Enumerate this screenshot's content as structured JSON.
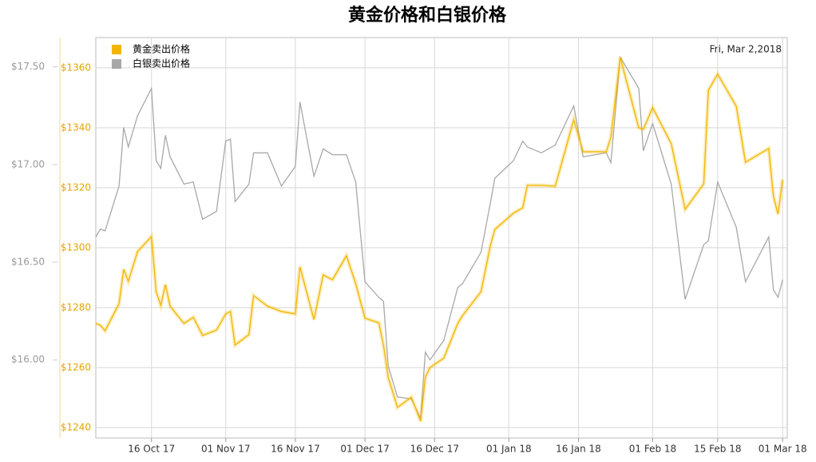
{
  "chart_data": {
    "type": "line",
    "title": "黄金价格和白银价格",
    "annotation": "Fri, Mar 2,2018",
    "grid": true,
    "legend": "top-left",
    "xlim": [
      "2017-10-04",
      "2018-03-02"
    ],
    "xticks": [
      {
        "value": "2017-10-16",
        "label": "16 Oct 17"
      },
      {
        "value": "2017-11-01",
        "label": "01 Nov 17"
      },
      {
        "value": "2017-11-16",
        "label": "16 Nov 17"
      },
      {
        "value": "2017-12-01",
        "label": "01 Dec 17"
      },
      {
        "value": "2017-12-16",
        "label": "16 Dec 17"
      },
      {
        "value": "2018-01-01",
        "label": "01 Jan 18"
      },
      {
        "value": "2018-01-16",
        "label": "16 Jan 18"
      },
      {
        "value": "2018-02-01",
        "label": "01 Feb 18"
      },
      {
        "value": "2018-02-15",
        "label": "15 Feb 18"
      },
      {
        "value": "2018-03-01",
        "label": "01 Mar 18"
      }
    ],
    "ylim": [
      1236.5,
      1370.1
    ],
    "yticks": [
      {
        "value": 1240,
        "label": "$1240"
      },
      {
        "value": 1260,
        "label": "$1260"
      },
      {
        "value": 1280,
        "label": "$1280"
      },
      {
        "value": 1300,
        "label": "$1300"
      },
      {
        "value": 1320,
        "label": "$1320"
      },
      {
        "value": 1340,
        "label": "$1340"
      },
      {
        "value": 1360,
        "label": "$1360"
      }
    ],
    "y2lim": [
      15.6,
      17.65
    ],
    "y2ticks": [
      {
        "value": 16.0,
        "label": "$16.00"
      },
      {
        "value": 16.5,
        "label": "$16.50"
      },
      {
        "value": 17.0,
        "label": "$17.00"
      },
      {
        "value": 17.5,
        "label": "$17.50"
      }
    ],
    "x": [
      "2017-10-04",
      "2017-10-05",
      "2017-10-06",
      "2017-10-09",
      "2017-10-10",
      "2017-10-11",
      "2017-10-13",
      "2017-10-16",
      "2017-10-17",
      "2017-10-18",
      "2017-10-19",
      "2017-10-20",
      "2017-10-23",
      "2017-10-25",
      "2017-10-27",
      "2017-10-30",
      "2017-11-01",
      "2017-11-02",
      "2017-11-03",
      "2017-11-06",
      "2017-11-07",
      "2017-11-10",
      "2017-11-13",
      "2017-11-16",
      "2017-11-17",
      "2017-11-20",
      "2017-11-22",
      "2017-11-24",
      "2017-11-27",
      "2017-11-29",
      "2017-12-01",
      "2017-12-04",
      "2017-12-05",
      "2017-12-06",
      "2017-12-08",
      "2017-12-11",
      "2017-12-13",
      "2017-12-14",
      "2017-12-15",
      "2017-12-18",
      "2017-12-21",
      "2017-12-22",
      "2017-12-26",
      "2017-12-28",
      "2017-12-29",
      "2018-01-02",
      "2018-01-04",
      "2018-01-05",
      "2018-01-08",
      "2018-01-11",
      "2018-01-15",
      "2018-01-17",
      "2018-01-22",
      "2018-01-23",
      "2018-01-25",
      "2018-01-29",
      "2018-01-30",
      "2018-02-01",
      "2018-02-05",
      "2018-02-08",
      "2018-02-12",
      "2018-02-13",
      "2018-02-15",
      "2018-02-19",
      "2018-02-21",
      "2018-02-26",
      "2018-02-27",
      "2018-02-28",
      "2018-03-01"
    ],
    "series": [
      {
        "name": "黄金卖出价格",
        "color": "#f2b600",
        "values": [
          1274.7,
          1274.1,
          1272.3,
          1281.3,
          1292.8,
          1288.8,
          1298.7,
          1303.7,
          1285.3,
          1280.8,
          1287.7,
          1280.5,
          1274.7,
          1276.8,
          1270.7,
          1272.5,
          1277.9,
          1278.7,
          1267.5,
          1271.0,
          1284.0,
          1280.5,
          1278.7,
          1277.9,
          1293.6,
          1276.0,
          1290.9,
          1289.3,
          1297.3,
          1288.0,
          1276.5,
          1274.9,
          1267.5,
          1256.8,
          1246.7,
          1250.1,
          1242.1,
          1256.8,
          1260.0,
          1263.2,
          1274.7,
          1277.3,
          1285.3,
          1300.5,
          1306.1,
          1311.5,
          1313.3,
          1320.8,
          1320.8,
          1320.5,
          1342.7,
          1332.0,
          1332.0,
          1336.8,
          1363.5,
          1340.0,
          1339.5,
          1346.7,
          1334.7,
          1312.8,
          1321.3,
          1352.5,
          1357.9,
          1347.2,
          1328.5,
          1333.1,
          1317.3,
          1311.2,
          1322.7
        ]
      },
      {
        "name": "白银卖出价格",
        "color": "#a8a8a8",
        "axis": "y2",
        "values": [
          16.63,
          16.67,
          16.66,
          16.89,
          17.19,
          17.09,
          17.25,
          17.39,
          17.02,
          16.98,
          17.15,
          17.04,
          16.9,
          16.91,
          16.72,
          16.76,
          17.12,
          17.13,
          16.81,
          16.9,
          17.06,
          17.06,
          16.89,
          16.99,
          17.32,
          16.94,
          17.08,
          17.05,
          17.05,
          16.91,
          16.4,
          16.32,
          16.3,
          15.97,
          15.81,
          15.8,
          15.7,
          16.04,
          16.0,
          16.1,
          16.37,
          16.39,
          16.55,
          16.8,
          16.93,
          17.02,
          17.12,
          17.09,
          17.06,
          17.1,
          17.3,
          17.04,
          17.06,
          17.01,
          17.55,
          17.39,
          17.07,
          17.21,
          16.9,
          16.31,
          16.59,
          16.61,
          16.91,
          16.68,
          16.4,
          16.63,
          16.36,
          16.32,
          16.41
        ]
      }
    ]
  }
}
